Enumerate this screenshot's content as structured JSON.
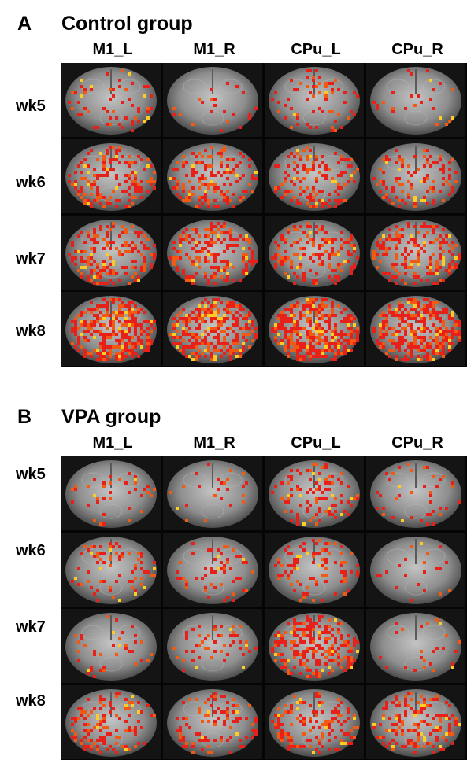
{
  "panels": [
    {
      "letter": "A",
      "title": "Control group",
      "columns": [
        "M1_L",
        "M1_R",
        "CPu_L",
        "CPu_R"
      ],
      "rows": [
        "wk5",
        "wk6",
        "wk7",
        "wk8"
      ]
    },
    {
      "letter": "B",
      "title": "VPA group",
      "columns": [
        "M1_L",
        "M1_R",
        "CPu_L",
        "CPu_R"
      ],
      "rows": [
        "wk5",
        "wk6",
        "wk7",
        "wk8"
      ]
    }
  ],
  "colors": {
    "activation_low": "#e8201a",
    "activation_mid": "#f25a14",
    "activation_high": "#ffcc22",
    "background": "#141414"
  }
}
